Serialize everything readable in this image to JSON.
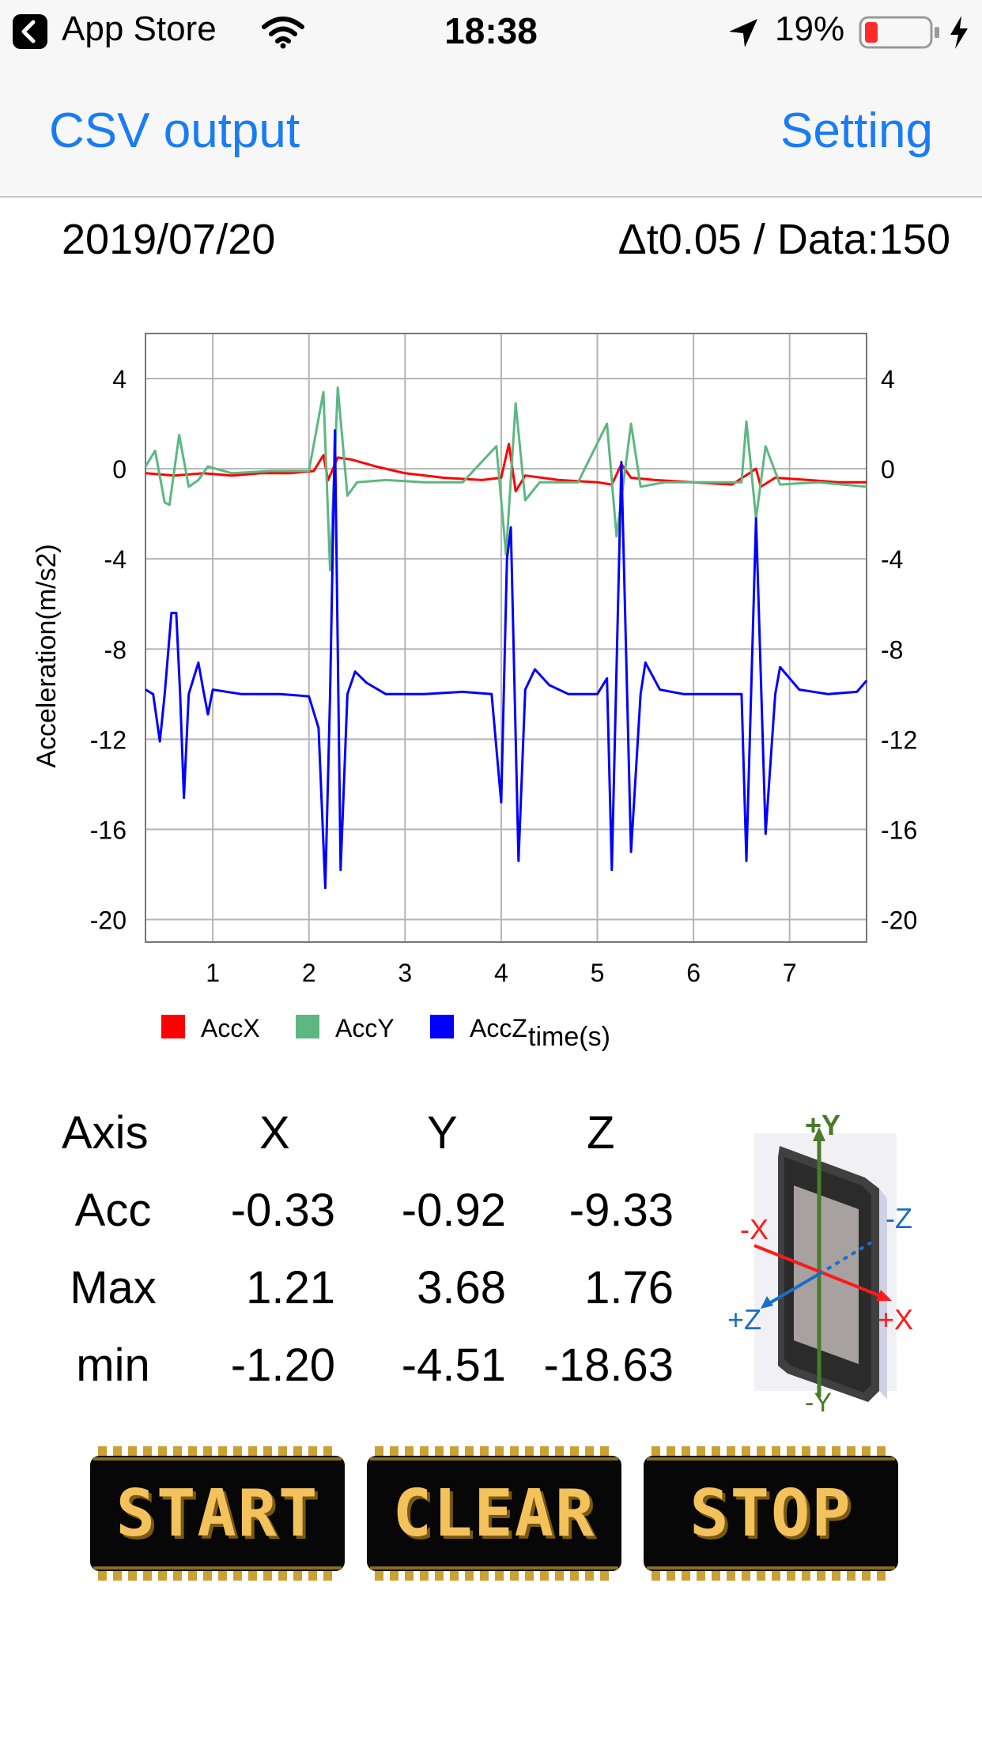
{
  "status_bar": {
    "back_label": "App Store",
    "time": "18:38",
    "battery": "19%"
  },
  "nav": {
    "left_button": "CSV output",
    "right_button": "Setting"
  },
  "info": {
    "date": "2019/07/20",
    "dt_data": "Δt0.05 / Data:150"
  },
  "chart_data": {
    "type": "line",
    "xlabel": "time(s)",
    "ylabel": "Acceleration(m/s2)",
    "xlim": [
      0.3,
      7.8
    ],
    "ylim": [
      -21,
      6
    ],
    "x_ticks": [
      "1",
      "2",
      "3",
      "4",
      "5",
      "6",
      "7"
    ],
    "y_ticks": [
      "4",
      "0",
      "-4",
      "-8",
      "-12",
      "-16",
      "-20"
    ],
    "grid": true,
    "legend_position": "bottom-left",
    "series": [
      {
        "name": "AccX",
        "color": "#ff0000",
        "points": [
          [
            0.3,
            -0.2
          ],
          [
            0.6,
            -0.3
          ],
          [
            0.9,
            -0.2
          ],
          [
            1.2,
            -0.3
          ],
          [
            1.5,
            -0.2
          ],
          [
            1.8,
            -0.2
          ],
          [
            2.05,
            -0.1
          ],
          [
            2.15,
            0.6
          ],
          [
            2.2,
            -0.5
          ],
          [
            2.3,
            0.5
          ],
          [
            2.45,
            0.4
          ],
          [
            2.7,
            0.1
          ],
          [
            3.0,
            -0.2
          ],
          [
            3.4,
            -0.4
          ],
          [
            3.8,
            -0.5
          ],
          [
            4.0,
            -0.4
          ],
          [
            4.08,
            1.1
          ],
          [
            4.15,
            -1.0
          ],
          [
            4.25,
            -0.3
          ],
          [
            4.6,
            -0.5
          ],
          [
            5.0,
            -0.6
          ],
          [
            5.15,
            -0.7
          ],
          [
            5.25,
            0.2
          ],
          [
            5.35,
            -0.4
          ],
          [
            5.6,
            -0.5
          ],
          [
            6.0,
            -0.6
          ],
          [
            6.4,
            -0.7
          ],
          [
            6.65,
            0.0
          ],
          [
            6.7,
            -0.8
          ],
          [
            6.85,
            -0.4
          ],
          [
            7.2,
            -0.5
          ],
          [
            7.5,
            -0.6
          ],
          [
            7.8,
            -0.6
          ]
        ]
      },
      {
        "name": "AccY",
        "color": "#5db782",
        "points": [
          [
            0.3,
            0.1
          ],
          [
            0.4,
            0.8
          ],
          [
            0.5,
            -1.5
          ],
          [
            0.55,
            -1.6
          ],
          [
            0.65,
            1.5
          ],
          [
            0.75,
            -0.8
          ],
          [
            0.85,
            -0.5
          ],
          [
            0.95,
            0.1
          ],
          [
            1.2,
            -0.2
          ],
          [
            1.6,
            -0.1
          ],
          [
            2.0,
            -0.1
          ],
          [
            2.15,
            3.4
          ],
          [
            2.22,
            -4.5
          ],
          [
            2.3,
            3.6
          ],
          [
            2.4,
            -1.2
          ],
          [
            2.5,
            -0.6
          ],
          [
            2.8,
            -0.5
          ],
          [
            3.2,
            -0.6
          ],
          [
            3.6,
            -0.6
          ],
          [
            3.95,
            1.0
          ],
          [
            4.05,
            -3.8
          ],
          [
            4.15,
            2.9
          ],
          [
            4.25,
            -1.4
          ],
          [
            4.4,
            -0.6
          ],
          [
            4.8,
            -0.6
          ],
          [
            5.1,
            2.0
          ],
          [
            5.2,
            -3.0
          ],
          [
            5.35,
            2.0
          ],
          [
            5.45,
            -0.8
          ],
          [
            5.7,
            -0.6
          ],
          [
            6.1,
            -0.6
          ],
          [
            6.5,
            -0.6
          ],
          [
            6.55,
            2.1
          ],
          [
            6.65,
            -2.2
          ],
          [
            6.75,
            1.0
          ],
          [
            6.9,
            -0.7
          ],
          [
            7.3,
            -0.6
          ],
          [
            7.8,
            -0.8
          ]
        ]
      },
      {
        "name": "AccZ",
        "color": "#0000ff",
        "points": [
          [
            0.3,
            -9.8
          ],
          [
            0.38,
            -10.0
          ],
          [
            0.45,
            -12.1
          ],
          [
            0.5,
            -10.0
          ],
          [
            0.57,
            -6.4
          ],
          [
            0.62,
            -6.4
          ],
          [
            0.66,
            -10.0
          ],
          [
            0.7,
            -14.6
          ],
          [
            0.75,
            -10.0
          ],
          [
            0.8,
            -9.3
          ],
          [
            0.85,
            -8.6
          ],
          [
            0.9,
            -9.8
          ],
          [
            0.95,
            -10.9
          ],
          [
            1.0,
            -9.8
          ],
          [
            1.3,
            -10.0
          ],
          [
            1.7,
            -10.0
          ],
          [
            2.0,
            -10.1
          ],
          [
            2.1,
            -11.5
          ],
          [
            2.17,
            -18.6
          ],
          [
            2.22,
            -10.0
          ],
          [
            2.27,
            1.7
          ],
          [
            2.33,
            -17.8
          ],
          [
            2.4,
            -10.0
          ],
          [
            2.48,
            -9.0
          ],
          [
            2.6,
            -9.5
          ],
          [
            2.8,
            -10.0
          ],
          [
            3.2,
            -10.0
          ],
          [
            3.6,
            -9.9
          ],
          [
            3.9,
            -10.0
          ],
          [
            4.0,
            -14.8
          ],
          [
            4.06,
            -4.0
          ],
          [
            4.1,
            -2.6
          ],
          [
            4.18,
            -17.4
          ],
          [
            4.25,
            -9.8
          ],
          [
            4.35,
            -8.9
          ],
          [
            4.5,
            -9.6
          ],
          [
            4.7,
            -10.0
          ],
          [
            5.0,
            -10.0
          ],
          [
            5.1,
            -9.3
          ],
          [
            5.15,
            -17.8
          ],
          [
            5.25,
            0.3
          ],
          [
            5.35,
            -17.0
          ],
          [
            5.45,
            -10.0
          ],
          [
            5.5,
            -8.6
          ],
          [
            5.65,
            -9.8
          ],
          [
            5.9,
            -10.0
          ],
          [
            6.3,
            -10.0
          ],
          [
            6.5,
            -10.0
          ],
          [
            6.55,
            -17.4
          ],
          [
            6.65,
            -2.2
          ],
          [
            6.75,
            -16.2
          ],
          [
            6.85,
            -10.0
          ],
          [
            6.9,
            -8.8
          ],
          [
            7.1,
            -9.8
          ],
          [
            7.4,
            -10.0
          ],
          [
            7.7,
            -9.9
          ],
          [
            7.8,
            -9.4
          ]
        ]
      }
    ]
  },
  "stats": {
    "headers": [
      "Axis",
      "X",
      "Y",
      "Z"
    ],
    "rows": [
      {
        "label": "Acc",
        "x": "-0.33",
        "y": "-0.92",
        "z": "-9.33"
      },
      {
        "label": "Max",
        "x": "1.21",
        "y": "3.68",
        "z": "1.76"
      },
      {
        "label": "min",
        "x": "-1.20",
        "y": "-4.51",
        "z": "-18.63"
      }
    ]
  },
  "device_axes": {
    "plus_y": "+Y",
    "minus_y": "-Y",
    "plus_x": "+X",
    "minus_x": "-X",
    "plus_z": "+Z",
    "minus_z": "-Z",
    "y_color": "#4a7a2a",
    "x_color": "#ff1a1a",
    "z_color": "#1a6ec8"
  },
  "buttons": {
    "start": "START",
    "clear": "CLEAR",
    "stop": "STOP"
  }
}
